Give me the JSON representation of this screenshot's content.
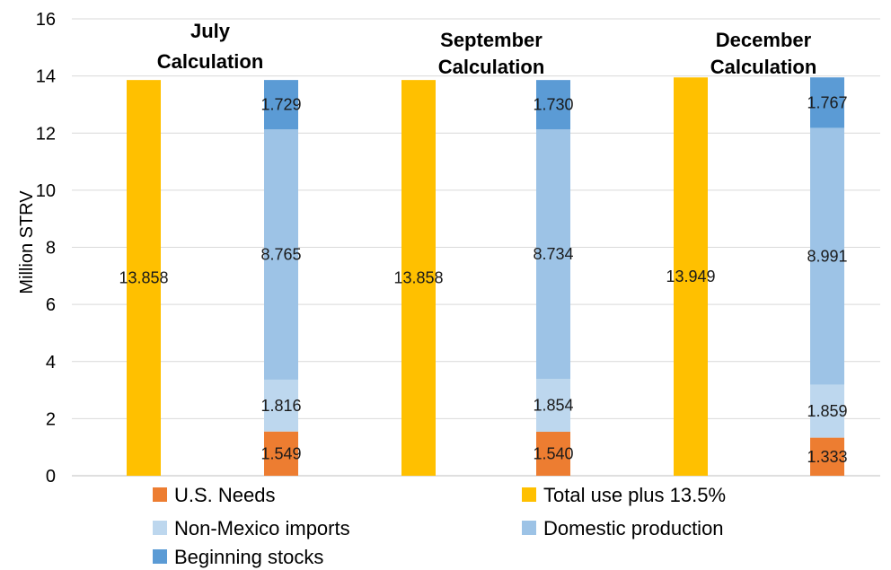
{
  "chart_data": {
    "type": "bar",
    "ylabel": "Million STRV",
    "ylim": [
      0,
      16
    ],
    "yticks": [
      0,
      2,
      4,
      6,
      8,
      10,
      12,
      14,
      16
    ],
    "grid": true,
    "legend_position": "bottom",
    "colors": {
      "us_needs": "#ED7D31",
      "total_use": "#FFC000",
      "non_mexico": "#BDD7EE",
      "domestic": "#9DC3E6",
      "beginning": "#5B9BD5"
    },
    "groups": [
      {
        "title_line1": "July",
        "title_line2": "Calculation",
        "total_use": {
          "value": 13.858,
          "label": "13.858"
        },
        "stack": [
          {
            "key": "us_needs",
            "value": 1.549,
            "label": "1.549"
          },
          {
            "key": "non_mexico",
            "value": 1.816,
            "label": "1.816"
          },
          {
            "key": "domestic",
            "value": 8.765,
            "label": "8.765"
          },
          {
            "key": "beginning",
            "value": 1.729,
            "label": "1.729"
          }
        ]
      },
      {
        "title_line1": "September",
        "title_line2": "Calculation",
        "total_use": {
          "value": 13.858,
          "label": "13.858"
        },
        "stack": [
          {
            "key": "us_needs",
            "value": 1.54,
            "label": "1.540"
          },
          {
            "key": "non_mexico",
            "value": 1.854,
            "label": "1.854"
          },
          {
            "key": "domestic",
            "value": 8.734,
            "label": "8.734"
          },
          {
            "key": "beginning",
            "value": 1.73,
            "label": "1.730"
          }
        ]
      },
      {
        "title_line1": "December",
        "title_line2": "Calculation",
        "total_use": {
          "value": 13.949,
          "label": "13.949"
        },
        "stack": [
          {
            "key": "us_needs",
            "value": 1.333,
            "label": "1.333"
          },
          {
            "key": "non_mexico",
            "value": 1.859,
            "label": "1.859"
          },
          {
            "key": "domestic",
            "value": 8.991,
            "label": "8.991"
          },
          {
            "key": "beginning",
            "value": 1.767,
            "label": "1.767"
          }
        ]
      }
    ],
    "legend": [
      {
        "key": "us_needs",
        "label": "U.S. Needs"
      },
      {
        "key": "total_use",
        "label": "Total use plus 13.5%"
      },
      {
        "key": "non_mexico",
        "label": "Non-Mexico imports"
      },
      {
        "key": "domestic",
        "label": "Domestic production"
      },
      {
        "key": "beginning",
        "label": "Beginning stocks"
      }
    ]
  }
}
